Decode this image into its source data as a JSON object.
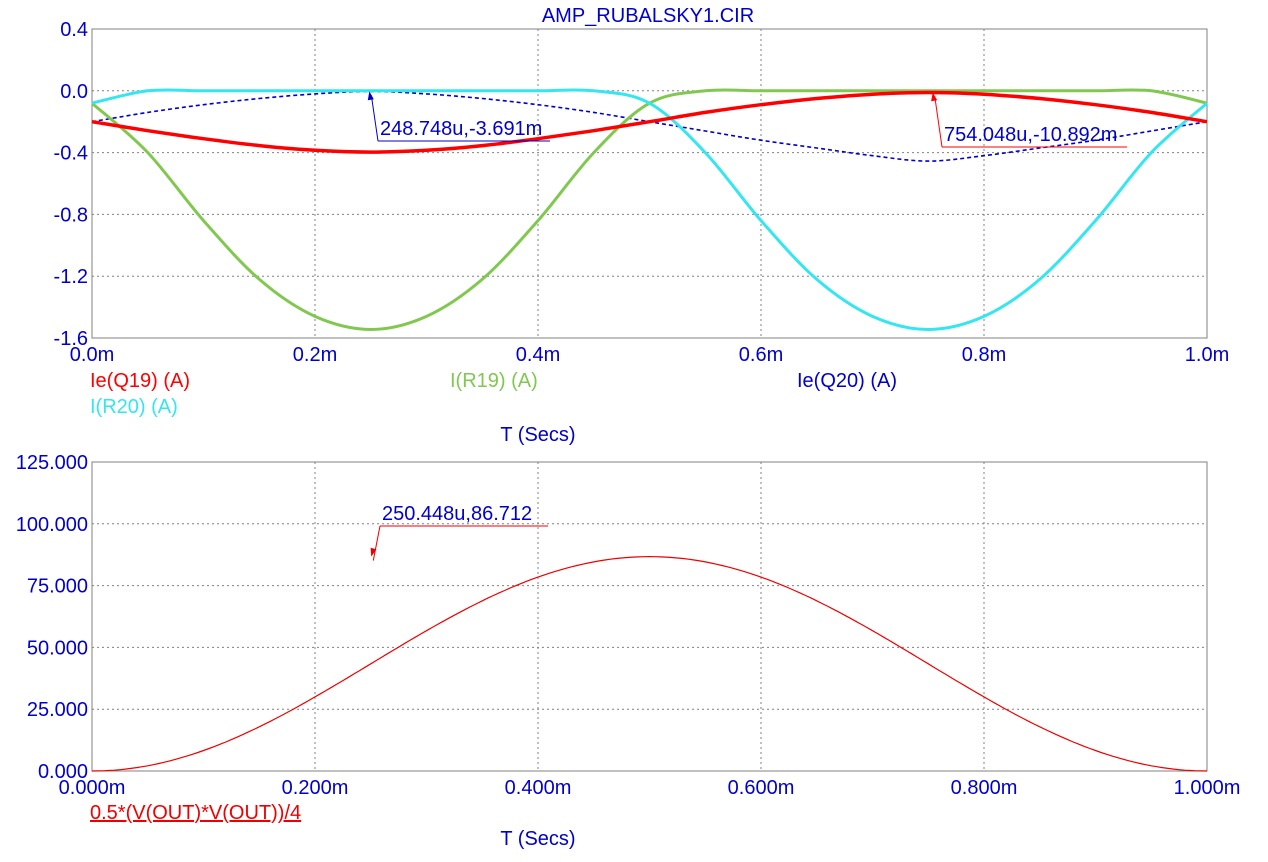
{
  "title": "AMP_RUBALSKY1.CIR",
  "colors": {
    "axis_text": "#0000cc",
    "grid": "#808080",
    "ie_q19": "#ff0000",
    "i_r19": "#80c850",
    "ie_q20": "#0000cc",
    "i_r20": "#33e6f0",
    "power": "#ee0000"
  },
  "chart_data": [
    {
      "type": "line",
      "title": "AMP_RUBALSKY1.CIR",
      "xlabel": "T (Secs)",
      "ylabel": "",
      "xlim": [
        0,
        0.001
      ],
      "ylim": [
        -1.6,
        0.4
      ],
      "grid": true,
      "x_ticks": [
        0,
        0.0002,
        0.0004,
        0.0006,
        0.0008,
        0.001
      ],
      "x_tick_labels": [
        "0.0m",
        "0.2m",
        "0.4m",
        "0.6m",
        "0.8m",
        "1.0m"
      ],
      "y_ticks": [
        0.4,
        0.0,
        -0.4,
        -0.8,
        -1.2,
        -1.6
      ],
      "y_tick_labels": [
        "0.4",
        "0.0",
        "-0.4",
        "-0.8",
        "-1.2",
        "-1.6"
      ],
      "x": [
        0,
        5e-05,
        0.0001,
        0.00015,
        0.0002,
        0.00025,
        0.0003,
        0.00035,
        0.0004,
        0.00045,
        0.0005,
        0.00055,
        0.0006,
        0.00065,
        0.0007,
        0.00075,
        0.0008,
        0.00085,
        0.0009,
        0.00095,
        0.001
      ],
      "series": [
        {
          "name": "Ie(Q19) (A)",
          "values": [
            -0.2,
            -0.258,
            -0.31,
            -0.355,
            -0.385,
            -0.397,
            -0.385,
            -0.355,
            -0.31,
            -0.258,
            -0.2,
            -0.14,
            -0.09,
            -0.05,
            -0.022,
            -0.011,
            -0.022,
            -0.05,
            -0.09,
            -0.14,
            -0.2
          ]
        },
        {
          "name": "I(R19) (A)",
          "values": [
            -0.08,
            -0.4,
            -0.84,
            -1.22,
            -1.46,
            -1.545,
            -1.46,
            -1.22,
            -0.84,
            -0.4,
            -0.08,
            0.0,
            0.0,
            0.0,
            0.0,
            0.0,
            0.0,
            0.0,
            0.0,
            0.0,
            -0.08
          ]
        },
        {
          "name": "Ie(Q20) (A)",
          "values": [
            -0.2,
            -0.14,
            -0.09,
            -0.05,
            -0.02,
            -0.004,
            -0.02,
            -0.05,
            -0.09,
            -0.14,
            -0.2,
            -0.26,
            -0.32,
            -0.37,
            -0.42,
            -0.455,
            -0.42,
            -0.37,
            -0.32,
            -0.26,
            -0.2
          ]
        },
        {
          "name": "I(R20) (A)",
          "values": [
            -0.08,
            0.0,
            0.0,
            0.0,
            0.0,
            0.0,
            0.0,
            0.0,
            0.0,
            0.0,
            -0.08,
            -0.4,
            -0.84,
            -1.22,
            -1.46,
            -1.545,
            -1.46,
            -1.22,
            -0.84,
            -0.4,
            -0.08
          ]
        }
      ],
      "annotations": [
        {
          "text": "248.748u,-3.691m",
          "x": 0.000248748,
          "y": -0.003691,
          "series": "Ie(Q20) (A)"
        },
        {
          "text": "754.048u,-10.892m",
          "x": 0.000754048,
          "y": -0.010892,
          "series": "Ie(Q19) (A)"
        }
      ]
    },
    {
      "type": "line",
      "xlabel": "T (Secs)",
      "ylabel": "",
      "xlim": [
        0,
        0.001
      ],
      "ylim": [
        0,
        125
      ],
      "grid": true,
      "x_ticks": [
        0,
        0.0002,
        0.0004,
        0.0006,
        0.0008,
        0.001
      ],
      "x_tick_labels": [
        "0.000m",
        "0.200m",
        "0.400m",
        "0.600m",
        "0.800m",
        "1.000m"
      ],
      "y_ticks": [
        125,
        100,
        75,
        50,
        25,
        0
      ],
      "y_tick_labels": [
        "125.000",
        "100.000",
        "75.000",
        "50.000",
        "25.000",
        "0.000"
      ],
      "series": [
        {
          "name": "0.5*(V(OUT)*V(OUT))/4",
          "peak": 86.712,
          "waveform": "peak*sin^2(2*pi*500*t)"
        }
      ],
      "annotations": [
        {
          "text": "250.448u,86.712",
          "x": 0.000250448,
          "y": 86.712,
          "series": "0.5*(V(OUT)*V(OUT))/4"
        }
      ]
    }
  ]
}
